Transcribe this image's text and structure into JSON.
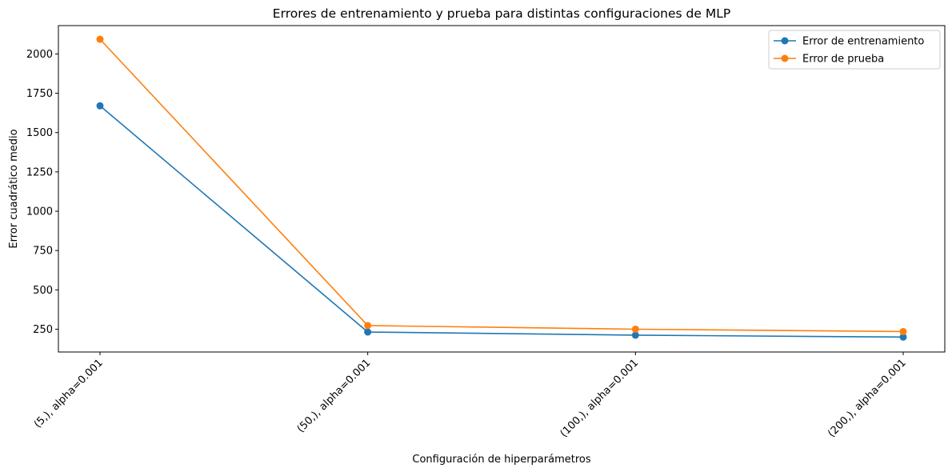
{
  "chart_data": {
    "type": "line",
    "title": "Errores de entrenamiento y prueba para distintas configuraciones de MLP",
    "xlabel": "Configuración de hiperparámetros",
    "ylabel": "Error cuadrático medio",
    "categories": [
      "(5,), alpha=0.001",
      "(50,), alpha=0.001",
      "(100,), alpha=0.001",
      "(200,), alpha=0.001"
    ],
    "series": [
      {
        "name": "Error de entrenamiento",
        "color": "#1f77b4",
        "values": [
          1670,
          232,
          212,
          200
        ]
      },
      {
        "name": "Error de prueba",
        "color": "#ff7f0e",
        "values": [
          2093,
          273,
          250,
          235
        ]
      }
    ],
    "ylim": [
      105,
      2180
    ],
    "yticks": [
      250,
      500,
      750,
      1000,
      1250,
      1500,
      1750,
      2000
    ],
    "grid": false,
    "legend": "top-right",
    "marker": "circle"
  }
}
